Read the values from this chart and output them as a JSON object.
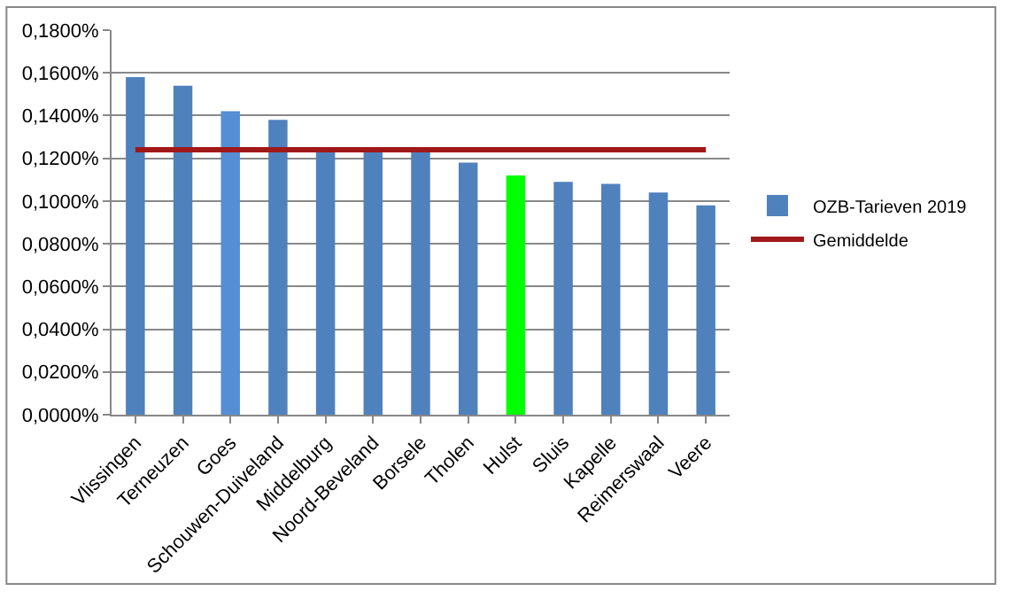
{
  "chart_data": {
    "type": "bar",
    "categories": [
      "Vlissingen",
      "Terneuzen",
      "Goes",
      "Schouwen-Duiveland",
      "Middelburg",
      "Noord-Beveland",
      "Borsele",
      "Tholen",
      "Hulst",
      "Sluis",
      "Kapelle",
      "Reimerswaal",
      "Veere"
    ],
    "series": [
      {
        "name": "OZB-Tarieven 2019",
        "color": "#4f81bd",
        "colors": [
          "#4f81bd",
          "#4f81bd",
          "#558ed5",
          "#4f81bd",
          "#4f81bd",
          "#4f81bd",
          "#4f81bd",
          "#4f81bd",
          "#00ff00",
          "#4f81bd",
          "#4f81bd",
          "#4f81bd",
          "#4f81bd"
        ],
        "values": [
          0.158,
          0.154,
          0.142,
          0.138,
          0.124,
          0.124,
          0.124,
          0.118,
          0.112,
          0.109,
          0.108,
          0.104,
          0.098
        ]
      },
      {
        "name": "Gemiddelde",
        "type": "line",
        "color": "#a01818",
        "values": [
          0.124,
          0.124,
          0.124,
          0.124,
          0.124,
          0.124,
          0.124,
          0.124,
          0.124,
          0.124,
          0.124,
          0.124,
          0.124
        ]
      }
    ],
    "ylim": [
      0,
      0.18
    ],
    "yticks": [
      {
        "value": 0,
        "label": "0,0000%"
      },
      {
        "value": 0.02,
        "label": "0,0200%"
      },
      {
        "value": 0.04,
        "label": "0,0400%"
      },
      {
        "value": 0.06,
        "label": "0,0600%"
      },
      {
        "value": 0.08,
        "label": "0,0800%"
      },
      {
        "value": 0.1,
        "label": "0,1000%"
      },
      {
        "value": 0.12,
        "label": "0,1200%"
      },
      {
        "value": 0.14,
        "label": "0,1400%"
      },
      {
        "value": 0.16,
        "label": "0,1600%"
      },
      {
        "value": 0.18,
        "label": "0,1800%"
      }
    ],
    "grid": "y",
    "legend": "right",
    "marker": "none",
    "line_style": "solid"
  }
}
